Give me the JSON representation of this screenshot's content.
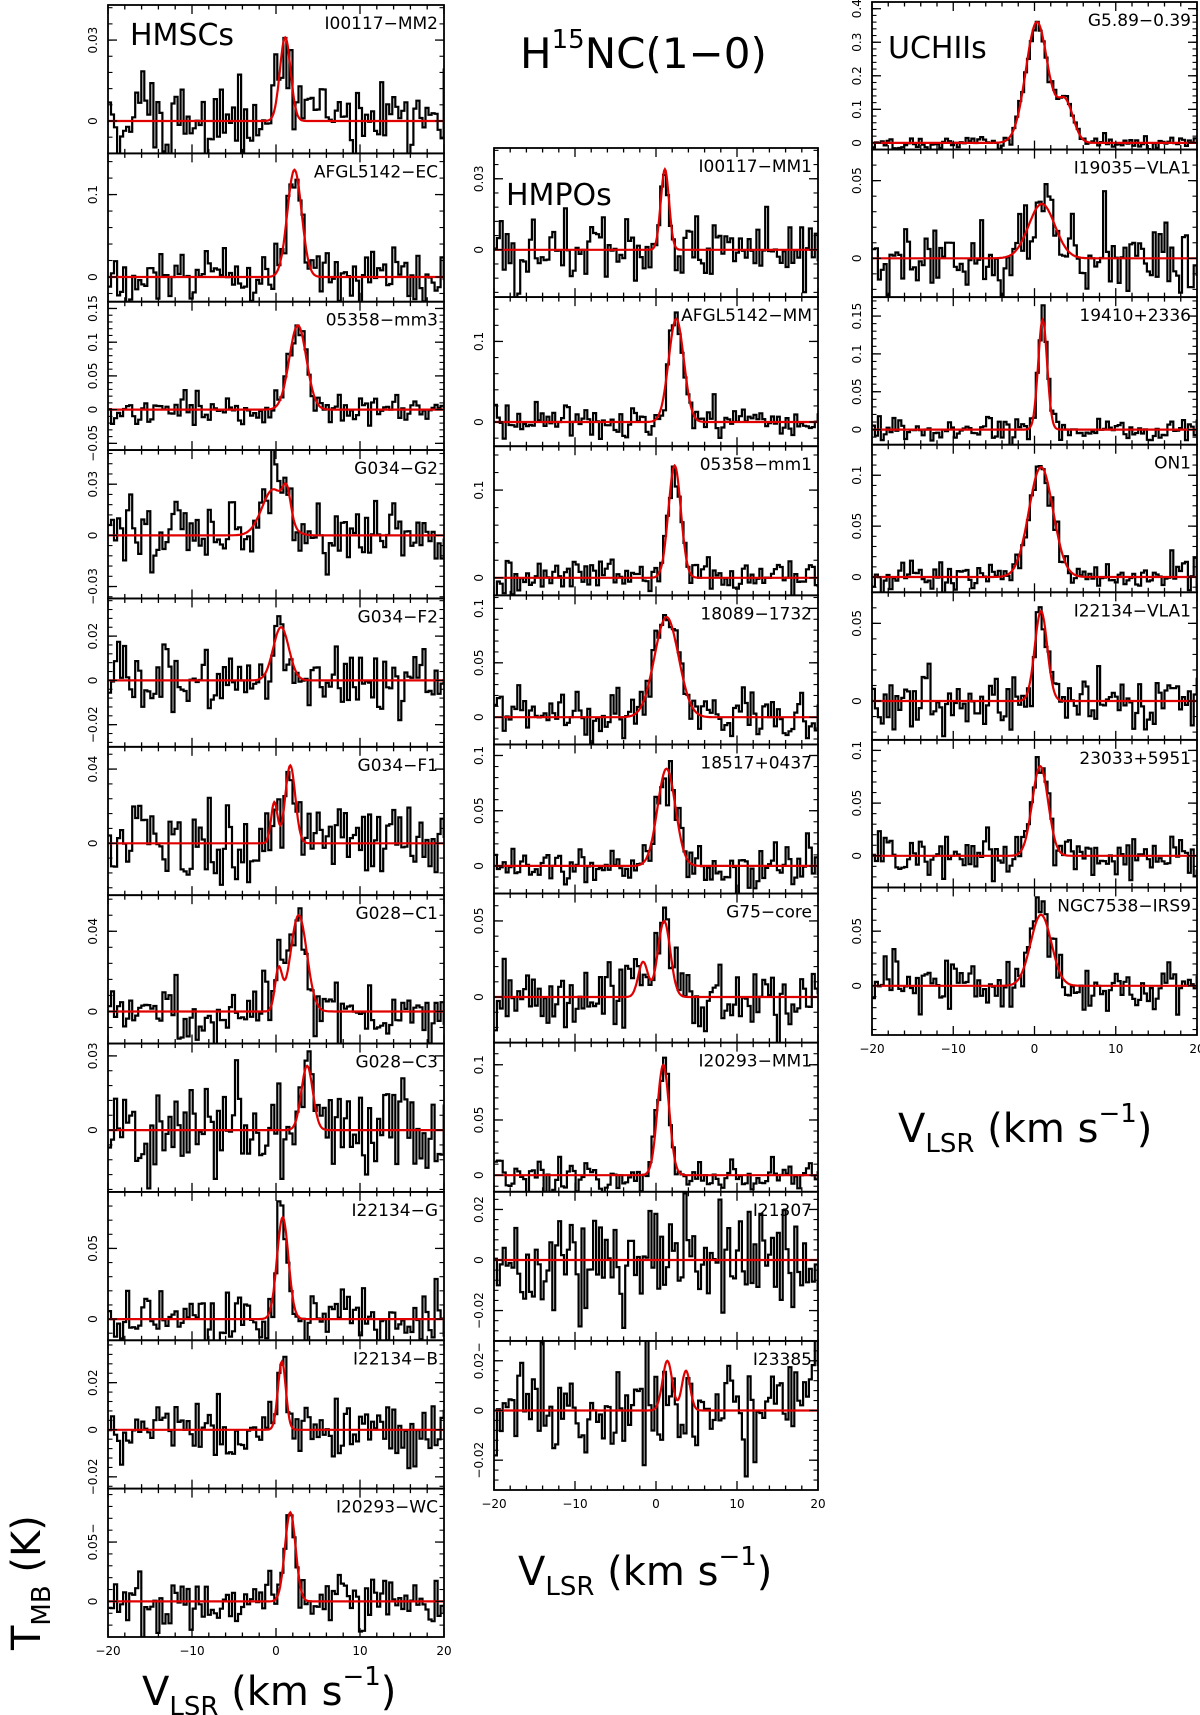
{
  "figure": {
    "main_title": {
      "base": "H",
      "sup": "15",
      "rest": "NC(1−0)"
    },
    "y_axis_label": {
      "main": "T",
      "sub": "MB",
      "unit": " (K)"
    },
    "x_axis_label": {
      "main": "V",
      "sub": "LSR",
      "unit_pre": " (km s",
      "sup": "−1",
      "unit_post": ")"
    },
    "group_labels": [
      "HMSCs",
      "HMPOs",
      "UCHIIs"
    ],
    "x_ticks": [
      "−20",
      "−10",
      "0",
      "10",
      "20"
    ],
    "colors": {
      "spectrum": "#000000",
      "fit": "#e00000"
    }
  },
  "chart_data": [
    {
      "type": "line",
      "group": "HMSCs",
      "title": "I00117−MM2",
      "ytick_labels": [
        "0",
        "0.03"
      ],
      "ylim": [
        -0.012,
        0.043
      ],
      "xlim": [
        -20,
        20
      ],
      "xlabel": "",
      "ylabel": "",
      "series": [
        {
          "name": "",
          "components": [
            {
              "amp": 0.031,
              "center": 1.1,
              "fwhm": 1.5
            }
          ],
          "noise": 0.008
        }
      ]
    },
    {
      "type": "line",
      "group": "HMSCs",
      "title": "AFGL5142−EC",
      "ytick_labels": [
        "0",
        "0.1"
      ],
      "ylim": [
        -0.03,
        0.15
      ],
      "xlim": [
        -20,
        20
      ],
      "xlabel": "",
      "ylabel": "",
      "series": [
        {
          "name": "",
          "components": [
            {
              "amp": 0.13,
              "center": 2.2,
              "fwhm": 2.0
            }
          ],
          "noise": 0.016
        }
      ]
    },
    {
      "type": "line",
      "group": "HMSCs",
      "title": "05358−mm3",
      "ytick_labels": [
        "−0.05",
        "0",
        "0.05",
        "0.1",
        "0.15"
      ],
      "ylim": [
        -0.06,
        0.16
      ],
      "xlim": [
        -20,
        20
      ],
      "xlabel": "",
      "ylabel": "",
      "series": [
        {
          "name": "",
          "components": [
            {
              "amp": 0.125,
              "center": 2.6,
              "fwhm": 2.4
            }
          ],
          "noise": 0.012
        }
      ]
    },
    {
      "type": "line",
      "group": "HMSCs",
      "title": "G034−G2",
      "ytick_labels": [
        "−0.03",
        "0",
        "0.03"
      ],
      "ylim": [
        -0.037,
        0.05
      ],
      "xlim": [
        -20,
        20
      ],
      "xlabel": "",
      "ylabel": "",
      "series": [
        {
          "name": "",
          "components": [
            {
              "amp": 0.027,
              "center": -0.3,
              "fwhm": 3.2
            },
            {
              "amp": 0.016,
              "center": 1.3,
              "fwhm": 1.1
            }
          ],
          "noise": 0.01
        }
      ]
    },
    {
      "type": "line",
      "group": "HMSCs",
      "title": "G034−F2",
      "ytick_labels": [
        "−0.02",
        "0",
        "0.02"
      ],
      "ylim": [
        -0.03,
        0.037
      ],
      "xlim": [
        -20,
        20
      ],
      "xlabel": "",
      "ylabel": "",
      "series": [
        {
          "name": "",
          "components": [
            {
              "amp": 0.024,
              "center": 0.6,
              "fwhm": 2.2
            }
          ],
          "noise": 0.007
        }
      ]
    },
    {
      "type": "line",
      "group": "HMSCs",
      "title": "G034−F1",
      "ytick_labels": [
        "0",
        "0.04"
      ],
      "ylim": [
        -0.028,
        0.052
      ],
      "xlim": [
        -20,
        20
      ],
      "xlabel": "",
      "ylabel": "",
      "series": [
        {
          "name": "",
          "components": [
            {
              "amp": 0.022,
              "center": -0.2,
              "fwhm": 0.9
            },
            {
              "amp": 0.042,
              "center": 1.7,
              "fwhm": 1.4
            }
          ],
          "noise": 0.011
        }
      ]
    },
    {
      "type": "line",
      "group": "HMSCs",
      "title": "G028−C1",
      "ytick_labels": [
        "0",
        "0.04"
      ],
      "ylim": [
        -0.016,
        0.058
      ],
      "xlim": [
        -20,
        20
      ],
      "xlabel": "",
      "ylabel": "",
      "series": [
        {
          "name": "",
          "components": [
            {
              "amp": 0.02,
              "center": 0.3,
              "fwhm": 1.0
            },
            {
              "amp": 0.048,
              "center": 2.7,
              "fwhm": 2.3
            }
          ],
          "noise": 0.009
        }
      ]
    },
    {
      "type": "line",
      "group": "HMSCs",
      "title": "G028−C3",
      "ytick_labels": [
        "0",
        "0.03"
      ],
      "ylim": [
        -0.025,
        0.035
      ],
      "xlim": [
        -20,
        20
      ],
      "xlabel": "",
      "ylabel": "",
      "series": [
        {
          "name": "",
          "components": [
            {
              "amp": 0.026,
              "center": 3.7,
              "fwhm": 1.6
            }
          ],
          "noise": 0.01
        }
      ]
    },
    {
      "type": "line",
      "group": "HMSCs",
      "title": "I22134−G",
      "ytick_labels": [
        "0",
        "0.05"
      ],
      "ylim": [
        -0.015,
        0.09
      ],
      "xlim": [
        -20,
        20
      ],
      "xlabel": "",
      "ylabel": "",
      "series": [
        {
          "name": "",
          "components": [
            {
              "amp": 0.072,
              "center": 0.8,
              "fwhm": 1.6
            }
          ],
          "noise": 0.01
        }
      ]
    },
    {
      "type": "line",
      "group": "HMSCs",
      "title": "I22134−B",
      "ytick_labels": [
        "−0.02",
        "0",
        "0.02"
      ],
      "ylim": [
        -0.025,
        0.038
      ],
      "xlim": [
        -20,
        20
      ],
      "xlabel": "",
      "ylabel": "",
      "series": [
        {
          "name": "",
          "components": [
            {
              "amp": 0.029,
              "center": 0.7,
              "fwhm": 1.1
            }
          ],
          "noise": 0.007
        }
      ]
    },
    {
      "type": "line",
      "group": "HMSCs",
      "title": "I20293−WC",
      "ytick_labels": [
        "0",
        "0.05−"
      ],
      "ylim": [
        -0.03,
        0.095
      ],
      "xlim": [
        -20,
        20
      ],
      "xlabel": "",
      "ylabel": "",
      "series": [
        {
          "name": "",
          "components": [
            {
              "amp": 0.075,
              "center": 1.7,
              "fwhm": 1.5
            }
          ],
          "noise": 0.011
        }
      ]
    },
    {
      "type": "line",
      "group": "HMPOs",
      "title": "I00117−MM1",
      "ytick_labels": [
        "0",
        "0.03"
      ],
      "ylim": [
        -0.02,
        0.043
      ],
      "xlim": [
        -20,
        20
      ],
      "xlabel": "",
      "ylabel": "",
      "series": [
        {
          "name": "",
          "components": [
            {
              "amp": 0.034,
              "center": 1.1,
              "fwhm": 1.2
            }
          ],
          "noise": 0.008
        }
      ]
    },
    {
      "type": "line",
      "group": "HMPOs",
      "title": "AFGL5142−MM",
      "ytick_labels": [
        "0",
        "0.1"
      ],
      "ylim": [
        -0.03,
        0.155
      ],
      "xlim": [
        -20,
        20
      ],
      "xlabel": "",
      "ylabel": "",
      "series": [
        {
          "name": "",
          "components": [
            {
              "amp": 0.128,
              "center": 2.5,
              "fwhm": 2.2
            }
          ],
          "noise": 0.012
        }
      ]
    },
    {
      "type": "line",
      "group": "HMPOs",
      "title": "05358−mm1",
      "ytick_labels": [
        "0",
        "0.1"
      ],
      "ylim": [
        -0.02,
        0.15
      ],
      "xlim": [
        -20,
        20
      ],
      "xlabel": "",
      "ylabel": "",
      "series": [
        {
          "name": "",
          "components": [
            {
              "amp": 0.128,
              "center": 2.3,
              "fwhm": 1.8
            }
          ],
          "noise": 0.01
        }
      ]
    },
    {
      "type": "line",
      "group": "HMPOs",
      "title": "18089−1732",
      "ytick_labels": [
        "0",
        "0.05",
        "0.1"
      ],
      "ylim": [
        -0.025,
        0.112
      ],
      "xlim": [
        -20,
        20
      ],
      "xlabel": "",
      "ylabel": "",
      "series": [
        {
          "name": "",
          "components": [
            {
              "amp": 0.092,
              "center": 1.3,
              "fwhm": 3.5
            }
          ],
          "noise": 0.012
        }
      ]
    },
    {
      "type": "line",
      "group": "HMPOs",
      "title": "18517+0437",
      "ytick_labels": [
        "0",
        "0.05",
        "0.1"
      ],
      "ylim": [
        -0.025,
        0.11
      ],
      "xlim": [
        -20,
        20
      ],
      "xlabel": "",
      "ylabel": "",
      "series": [
        {
          "name": "",
          "components": [
            {
              "amp": 0.088,
              "center": 1.3,
              "fwhm": 2.6
            }
          ],
          "noise": 0.011
        }
      ]
    },
    {
      "type": "line",
      "group": "HMPOs",
      "title": "G75−core",
      "ytick_labels": [
        "0",
        "0.05"
      ],
      "ylim": [
        -0.03,
        0.068
      ],
      "xlim": [
        -20,
        20
      ],
      "xlabel": "",
      "ylabel": "",
      "series": [
        {
          "name": "",
          "components": [
            {
              "amp": 0.023,
              "center": -1.6,
              "fwhm": 1.4
            },
            {
              "amp": 0.05,
              "center": 1.0,
              "fwhm": 1.8
            }
          ],
          "noise": 0.011
        }
      ]
    },
    {
      "type": "line",
      "group": "HMPOs",
      "title": "I20293−MM1",
      "ytick_labels": [
        "0",
        "0.05",
        "0.1"
      ],
      "ylim": [
        -0.015,
        0.12
      ],
      "xlim": [
        -20,
        20
      ],
      "xlabel": "",
      "ylabel": "",
      "series": [
        {
          "name": "",
          "components": [
            {
              "amp": 0.1,
              "center": 0.9,
              "fwhm": 1.7
            }
          ],
          "noise": 0.008
        }
      ]
    },
    {
      "type": "line",
      "group": "HMPOs",
      "title": "I21307",
      "ytick_labels": [
        "−0.02",
        "0",
        "0.02"
      ],
      "ylim": [
        -0.032,
        0.027
      ],
      "xlim": [
        -20,
        20
      ],
      "xlabel": "",
      "ylabel": "",
      "series": [
        {
          "name": "",
          "components": [],
          "noise": 0.012
        }
      ]
    },
    {
      "type": "line",
      "group": "HMPOs",
      "title": "I23385",
      "ytick_labels": [
        "−0.02",
        "0",
        "0.02−"
      ],
      "ylim": [
        -0.032,
        0.028
      ],
      "xlim": [
        -20,
        20
      ],
      "xlabel": "",
      "ylabel": "",
      "series": [
        {
          "name": "",
          "components": [
            {
              "amp": 0.02,
              "center": 1.4,
              "fwhm": 1.4
            },
            {
              "amp": 0.016,
              "center": 3.7,
              "fwhm": 1.2
            }
          ],
          "noise": 0.012
        }
      ]
    },
    {
      "type": "line",
      "group": "UCHIIs",
      "title": "G5.89−0.39",
      "ytick_labels": [
        "0",
        "0.1",
        "0.2",
        "0.3",
        "0.4"
      ],
      "ylim": [
        -0.02,
        0.42
      ],
      "xlim": [
        -20,
        20
      ],
      "xlabel": "",
      "ylabel": "",
      "series": [
        {
          "name": "",
          "components": [
            {
              "amp": 0.36,
              "center": 0.3,
              "fwhm": 3.2
            },
            {
              "amp": 0.12,
              "center": 3.8,
              "fwhm": 2.3
            }
          ],
          "noise": 0.011
        }
      ]
    },
    {
      "type": "line",
      "group": "UCHIIs",
      "title": "I19035−VLA1",
      "ytick_labels": [
        "0",
        "0.05"
      ],
      "ylim": [
        -0.025,
        0.07
      ],
      "xlim": [
        -20,
        20
      ],
      "xlabel": "",
      "ylabel": "",
      "series": [
        {
          "name": "",
          "components": [
            {
              "amp": 0.035,
              "center": 0.9,
              "fwhm": 3.8
            }
          ],
          "noise": 0.012
        }
      ]
    },
    {
      "type": "line",
      "group": "UCHIIs",
      "title": "19410+2336",
      "ytick_labels": [
        "0",
        "0.05",
        "0.1",
        "0.15"
      ],
      "ylim": [
        -0.02,
        0.175
      ],
      "xlim": [
        -20,
        20
      ],
      "xlabel": "",
      "ylabel": "",
      "series": [
        {
          "name": "",
          "components": [
            {
              "amp": 0.145,
              "center": 1.0,
              "fwhm": 1.3
            }
          ],
          "noise": 0.009
        }
      ]
    },
    {
      "type": "line",
      "group": "UCHIIs",
      "title": "ON1",
      "ytick_labels": [
        "0",
        "0.05",
        "0.1"
      ],
      "ylim": [
        -0.015,
        0.13
      ],
      "xlim": [
        -20,
        20
      ],
      "xlabel": "",
      "ylabel": "",
      "series": [
        {
          "name": "",
          "components": [
            {
              "amp": 0.108,
              "center": 0.8,
              "fwhm": 3.5
            }
          ],
          "noise": 0.008
        }
      ]
    },
    {
      "type": "line",
      "group": "UCHIIs",
      "title": "I22134−VLA1",
      "ytick_labels": [
        "0",
        "0.05"
      ],
      "ylim": [
        -0.025,
        0.07
      ],
      "xlim": [
        -20,
        20
      ],
      "xlabel": "",
      "ylabel": "",
      "series": [
        {
          "name": "",
          "components": [
            {
              "amp": 0.058,
              "center": 0.8,
              "fwhm": 1.8
            }
          ],
          "noise": 0.009
        }
      ]
    },
    {
      "type": "line",
      "group": "UCHIIs",
      "title": "23033+5951",
      "ytick_labels": [
        "0",
        "0.05",
        "0.1"
      ],
      "ylim": [
        -0.03,
        0.11
      ],
      "xlim": [
        -20,
        20
      ],
      "xlabel": "",
      "ylabel": "",
      "series": [
        {
          "name": "",
          "components": [
            {
              "amp": 0.085,
              "center": 0.7,
              "fwhm": 2.3
            }
          ],
          "noise": 0.011
        }
      ]
    },
    {
      "type": "line",
      "group": "UCHIIs",
      "title": "NGC7538−IRS9",
      "ytick_labels": [
        "0",
        "0.05"
      ],
      "ylim": [
        -0.045,
        0.09
      ],
      "xlim": [
        -20,
        20
      ],
      "xlabel": "",
      "ylabel": "",
      "series": [
        {
          "name": "",
          "components": [
            {
              "amp": 0.065,
              "center": 0.8,
              "fwhm": 3.0
            }
          ],
          "noise": 0.012
        }
      ]
    }
  ]
}
